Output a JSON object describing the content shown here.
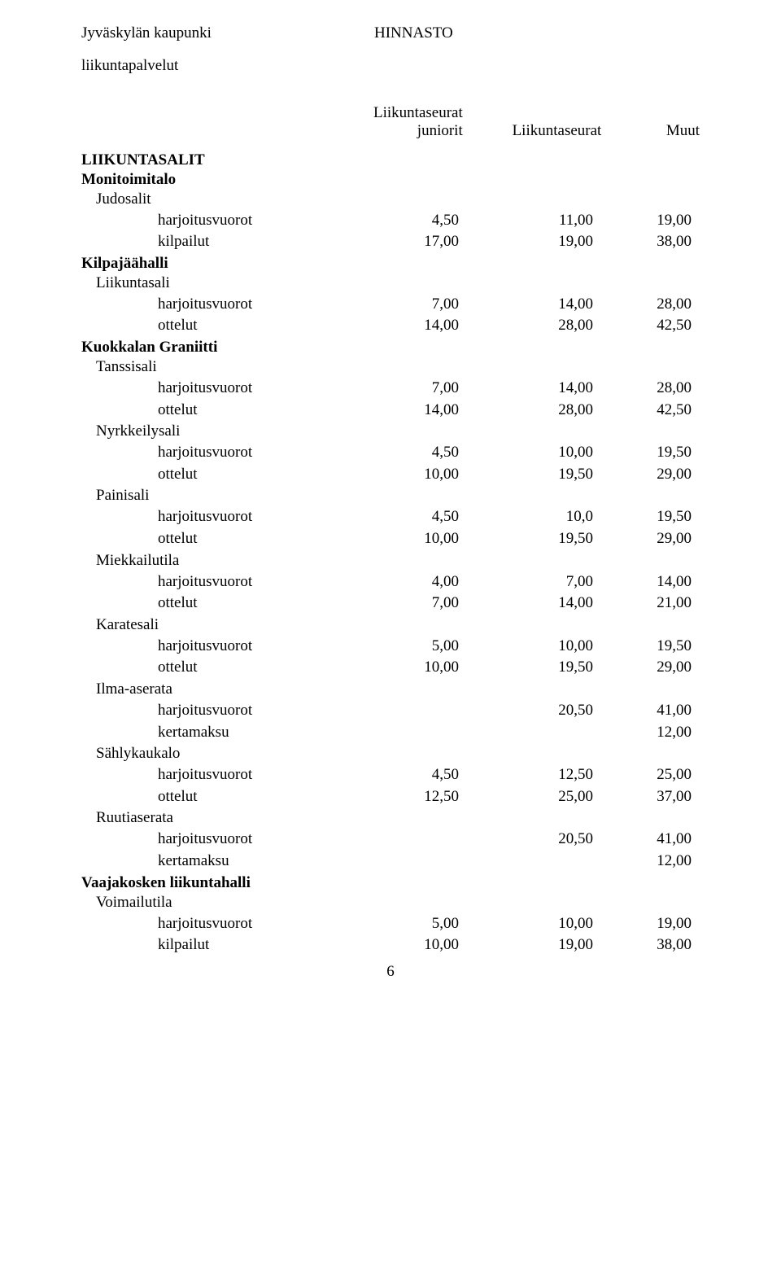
{
  "header": {
    "org": "Jyväskylän kaupunki",
    "title": "HINNASTO",
    "subtitle": "liikuntapalvelut"
  },
  "columns": {
    "c1_line1": "Liikuntaseurat",
    "c1_line2": "juniorit",
    "c2": "Liikuntaseurat",
    "c3": "Muut"
  },
  "section_title": "LIIKUNTASALIT",
  "page_number": "6",
  "groups": [
    {
      "facility": "Monitoimitalo",
      "sub": "Judosalit",
      "rows": [
        {
          "label": "harjoitusvuorot",
          "v1": "4,50",
          "v2": "11,00",
          "v3": "19,00"
        },
        {
          "label": "kilpailut",
          "v1": "17,00",
          "v2": "19,00",
          "v3": "38,00"
        }
      ]
    },
    {
      "facility": "Kilpajäähalli",
      "sub": "Liikuntasali",
      "rows": [
        {
          "label": "harjoitusvuorot",
          "v1": "7,00",
          "v2": "14,00",
          "v3": "28,00"
        },
        {
          "label": "ottelut",
          "v1": "14,00",
          "v2": "28,00",
          "v3": "42,50"
        }
      ]
    },
    {
      "facility": "Kuokkalan Graniitti",
      "sub": "Tanssisali",
      "rows": [
        {
          "label": "harjoitusvuorot",
          "v1": "7,00",
          "v2": "14,00",
          "v3": "28,00"
        },
        {
          "label": "ottelut",
          "v1": "14,00",
          "v2": "28,00",
          "v3": "42,50"
        }
      ]
    },
    {
      "sub": "Nyrkkeilysali",
      "rows": [
        {
          "label": "harjoitusvuorot",
          "v1": "4,50",
          "v2": "10,00",
          "v3": "19,50"
        },
        {
          "label": "ottelut",
          "v1": "10,00",
          "v2": "19,50",
          "v3": "29,00"
        }
      ]
    },
    {
      "sub": "Painisali",
      "rows": [
        {
          "label": "harjoitusvuorot",
          "v1": "4,50",
          "v2": "10,0",
          "v3": "19,50"
        },
        {
          "label": "ottelut",
          "v1": "10,00",
          "v2": "19,50",
          "v3": "29,00"
        }
      ]
    },
    {
      "sub": "Miekkailutila",
      "rows": [
        {
          "label": "harjoitusvuorot",
          "v1": "4,00",
          "v2": "7,00",
          "v3": "14,00"
        },
        {
          "label": "ottelut",
          "v1": "7,00",
          "v2": "14,00",
          "v3": "21,00"
        }
      ]
    },
    {
      "sub": "Karatesali",
      "rows": [
        {
          "label": "harjoitusvuorot",
          "v1": "5,00",
          "v2": "10,00",
          "v3": "19,50"
        },
        {
          "label": "ottelut",
          "v1": "10,00",
          "v2": "19,50",
          "v3": "29,00"
        }
      ]
    },
    {
      "sub": "Ilma-aserata",
      "rows": [
        {
          "label": "harjoitusvuorot",
          "v1": "",
          "v2": "20,50",
          "v3": "41,00"
        },
        {
          "label": "kertamaksu",
          "v1": "",
          "v2": "",
          "v3": "12,00"
        }
      ]
    },
    {
      "sub": "Sählykaukalo",
      "rows": [
        {
          "label": "harjoitusvuorot",
          "v1": "4,50",
          "v2": "12,50",
          "v3": "25,00"
        },
        {
          "label": "ottelut",
          "v1": "12,50",
          "v2": "25,00",
          "v3": "37,00"
        }
      ]
    },
    {
      "sub": "Ruutiaserata",
      "rows": [
        {
          "label": "harjoitusvuorot",
          "v1": "",
          "v2": "20,50",
          "v3": "41,00"
        },
        {
          "label": "kertamaksu",
          "v1": "",
          "v2": "",
          "v3": "12,00"
        }
      ]
    },
    {
      "facility": "Vaajakosken liikuntahalli",
      "sub": "Voimailutila",
      "rows": [
        {
          "label": "harjoitusvuorot",
          "v1": "5,00",
          "v2": "10,00",
          "v3": "19,00"
        },
        {
          "label": "kilpailut",
          "v1": "10,00",
          "v2": "19,00",
          "v3": "38,00"
        }
      ]
    }
  ]
}
